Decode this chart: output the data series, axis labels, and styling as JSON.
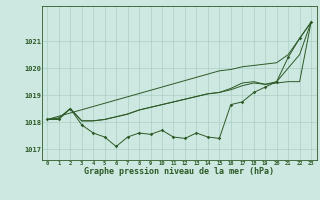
{
  "x": [
    0,
    1,
    2,
    3,
    4,
    5,
    6,
    7,
    8,
    9,
    10,
    11,
    12,
    13,
    14,
    15,
    16,
    17,
    18,
    19,
    20,
    21,
    22,
    23
  ],
  "line_wavy": [
    1018.1,
    1018.1,
    1018.5,
    1017.9,
    1017.6,
    1017.45,
    1017.1,
    1017.45,
    1017.6,
    1017.55,
    1017.7,
    1017.45,
    1017.4,
    1017.6,
    1017.45,
    1017.4,
    1018.65,
    1018.75,
    1019.1,
    1019.3,
    1019.5,
    1020.4,
    1021.1,
    1021.7
  ],
  "line_straight": [
    1018.1,
    1018.22,
    1018.34,
    1018.46,
    1018.58,
    1018.7,
    1018.82,
    1018.94,
    1019.06,
    1019.18,
    1019.3,
    1019.42,
    1019.54,
    1019.66,
    1019.78,
    1019.9,
    1019.95,
    1020.05,
    1020.1,
    1020.15,
    1020.2,
    1020.5,
    1021.1,
    1021.7
  ],
  "line_mid1": [
    1018.1,
    1018.15,
    1018.5,
    1018.05,
    1018.05,
    1018.1,
    1018.2,
    1018.3,
    1018.45,
    1018.55,
    1018.65,
    1018.75,
    1018.85,
    1018.95,
    1019.05,
    1019.1,
    1019.2,
    1019.35,
    1019.45,
    1019.4,
    1019.45,
    1019.5,
    1019.5,
    1021.7
  ],
  "line_mid2": [
    1018.1,
    1018.15,
    1018.5,
    1018.05,
    1018.05,
    1018.1,
    1018.2,
    1018.3,
    1018.45,
    1018.55,
    1018.65,
    1018.75,
    1018.85,
    1018.95,
    1019.05,
    1019.1,
    1019.25,
    1019.45,
    1019.5,
    1019.4,
    1019.5,
    1020.0,
    1020.5,
    1021.7
  ],
  "background_color": "#cde8e0",
  "grid_color": "#aacfc5",
  "line_color": "#2d5a27",
  "xlabel": "Graphe pression niveau de la mer (hPa)",
  "ylim": [
    1016.6,
    1022.3
  ],
  "xlim": [
    -0.5,
    23.5
  ],
  "yticks": [
    1017,
    1018,
    1019,
    1020,
    1021
  ],
  "xticks": [
    0,
    1,
    2,
    3,
    4,
    5,
    6,
    7,
    8,
    9,
    10,
    11,
    12,
    13,
    14,
    15,
    16,
    17,
    18,
    19,
    20,
    21,
    22,
    23
  ],
  "figwidth": 3.2,
  "figheight": 2.0,
  "dpi": 100
}
